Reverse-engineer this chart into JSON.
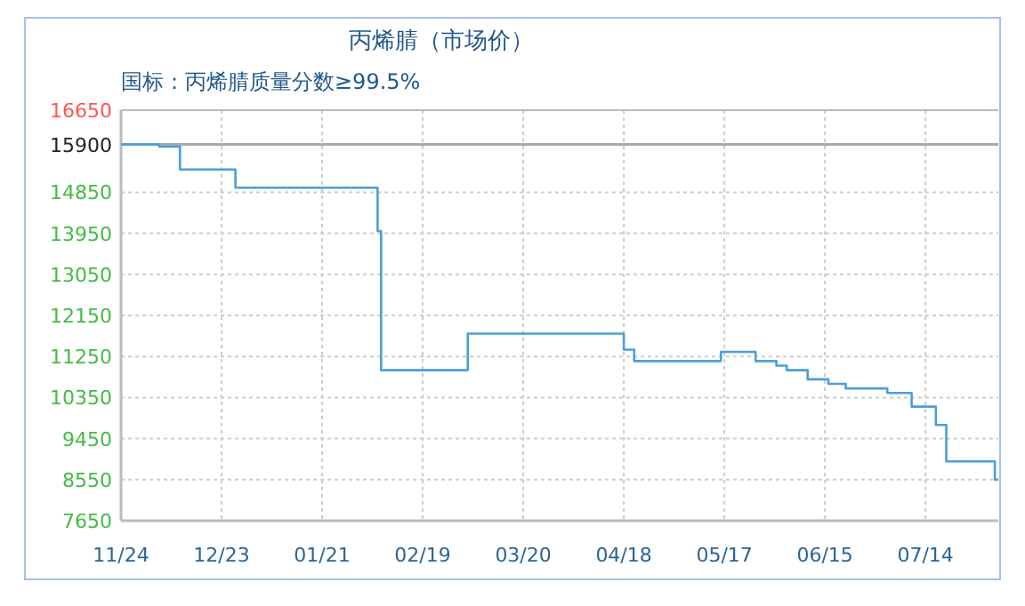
{
  "chart_data": {
    "type": "step",
    "title": "丙烯腈（市场价）",
    "subtitle": "国标：丙烯腈质量分数≥99.5%",
    "categories": [
      "11/24",
      null,
      null,
      null,
      null,
      null,
      null,
      null,
      null,
      null,
      null,
      null,
      null,
      null,
      null,
      null,
      null,
      null,
      null,
      null,
      null,
      null,
      null,
      null,
      null,
      null,
      null,
      null,
      null,
      "12/23",
      null,
      null,
      null,
      null,
      null,
      null,
      null,
      null,
      null,
      null,
      null,
      null,
      null,
      null,
      null,
      null,
      null,
      null,
      null,
      null,
      null,
      null,
      null,
      null,
      null,
      null,
      null,
      null,
      "01/21",
      null,
      null,
      null,
      null,
      null,
      null,
      null,
      null,
      null,
      null,
      null,
      null,
      null,
      null,
      null,
      null,
      null,
      null,
      null,
      null,
      null,
      null,
      null,
      null,
      null,
      null,
      null,
      null,
      "02/19",
      null,
      null,
      null,
      null,
      null,
      null,
      null,
      null,
      null,
      null,
      null,
      null,
      null,
      null,
      null,
      null,
      null,
      null,
      null,
      null,
      null,
      null,
      null,
      null,
      null,
      null,
      null,
      null,
      "03/20",
      null,
      null,
      null,
      null,
      null,
      null,
      null,
      null,
      null,
      null,
      null,
      null,
      null,
      null,
      null,
      null,
      null,
      null,
      null,
      null,
      null,
      null,
      null,
      null,
      null,
      null,
      null,
      null,
      "04/18",
      null,
      null,
      null,
      null,
      null,
      null,
      null,
      null,
      null,
      null,
      null,
      null,
      null,
      null,
      null,
      null,
      null,
      null,
      null,
      null,
      null,
      null,
      null,
      null,
      null,
      null,
      null,
      null,
      "05/17",
      null,
      null,
      null,
      null,
      null,
      null,
      null,
      null,
      null,
      null,
      null,
      null,
      null,
      null,
      null,
      null,
      null,
      null,
      null,
      null,
      null,
      null,
      null,
      null,
      null,
      null,
      null,
      null,
      "06/15",
      null,
      null,
      null,
      null,
      null,
      null,
      null,
      null,
      null,
      null,
      null,
      null,
      null,
      null,
      null,
      null,
      null,
      null,
      null,
      null,
      null,
      null,
      null,
      null,
      null,
      null,
      null,
      null,
      "07/14",
      null,
      null,
      null,
      null,
      null,
      null,
      null,
      null,
      null,
      null,
      null,
      null,
      null,
      null,
      null,
      null,
      null,
      null,
      null,
      null,
      null
    ],
    "series": [
      {
        "color": "#4a9fd8",
        "values": [
          15900,
          15900,
          15900,
          15900,
          15900,
          15900,
          15900,
          15900,
          15900,
          15900,
          15900,
          15850,
          15850,
          15850,
          15850,
          15850,
          15850,
          15350,
          15350,
          15350,
          15350,
          15350,
          15350,
          15350,
          15350,
          15350,
          15350,
          15350,
          15350,
          15350,
          15350,
          15350,
          15350,
          14950,
          14950,
          14950,
          14950,
          14950,
          14950,
          14950,
          14950,
          14950,
          14950,
          14950,
          14950,
          14950,
          14950,
          14950,
          14950,
          14950,
          14950,
          14950,
          14950,
          14950,
          14950,
          14950,
          14950,
          14950,
          14950,
          14950,
          14950,
          14950,
          14950,
          14950,
          14950,
          14950,
          14950,
          14950,
          14950,
          14950,
          14950,
          14950,
          14950,
          14950,
          14000,
          10950,
          10950,
          10950,
          10950,
          10950,
          10950,
          10950,
          10950,
          10950,
          10950,
          10950,
          10950,
          10950,
          10950,
          10950,
          10950,
          10950,
          10950,
          10950,
          10950,
          10950,
          10950,
          10950,
          10950,
          10950,
          11750,
          11750,
          11750,
          11750,
          11750,
          11750,
          11750,
          11750,
          11750,
          11750,
          11750,
          11750,
          11750,
          11750,
          11750,
          11750,
          11750,
          11750,
          11750,
          11750,
          11750,
          11750,
          11750,
          11750,
          11750,
          11750,
          11750,
          11750,
          11750,
          11750,
          11750,
          11750,
          11750,
          11750,
          11750,
          11750,
          11750,
          11750,
          11750,
          11750,
          11750,
          11750,
          11750,
          11750,
          11750,
          11400,
          11400,
          11400,
          11150,
          11150,
          11150,
          11150,
          11150,
          11150,
          11150,
          11150,
          11150,
          11150,
          11150,
          11150,
          11150,
          11150,
          11150,
          11150,
          11150,
          11150,
          11150,
          11150,
          11150,
          11150,
          11150,
          11150,
          11150,
          11350,
          11350,
          11350,
          11350,
          11350,
          11350,
          11350,
          11350,
          11350,
          11350,
          11150,
          11150,
          11150,
          11150,
          11150,
          11150,
          11050,
          11050,
          11050,
          10950,
          10950,
          10950,
          10950,
          10950,
          10950,
          10750,
          10750,
          10750,
          10750,
          10750,
          10750,
          10650,
          10650,
          10650,
          10650,
          10650,
          10550,
          10550,
          10550,
          10550,
          10550,
          10550,
          10550,
          10550,
          10550,
          10550,
          10550,
          10550,
          10450,
          10450,
          10450,
          10450,
          10450,
          10450,
          10450,
          10150,
          10150,
          10150,
          10150,
          10150,
          10150,
          10150,
          9750,
          9750,
          9750,
          8950,
          8950,
          8950,
          8950,
          8950,
          8950,
          8950,
          8950,
          8950,
          8950,
          8950,
          8950,
          8950,
          8950,
          8550,
          8550
        ]
      }
    ],
    "ylim": [
      7650,
      16650
    ],
    "yticks": [
      7650,
      8550,
      9450,
      10350,
      11250,
      12150,
      13050,
      13950,
      14850,
      16650
    ],
    "ref_lines": [
      {
        "axis": "y",
        "value": 15900,
        "label": "15900",
        "color": "#aaaaaa"
      }
    ],
    "grid": true,
    "marker": "none",
    "line_style": "solid"
  }
}
